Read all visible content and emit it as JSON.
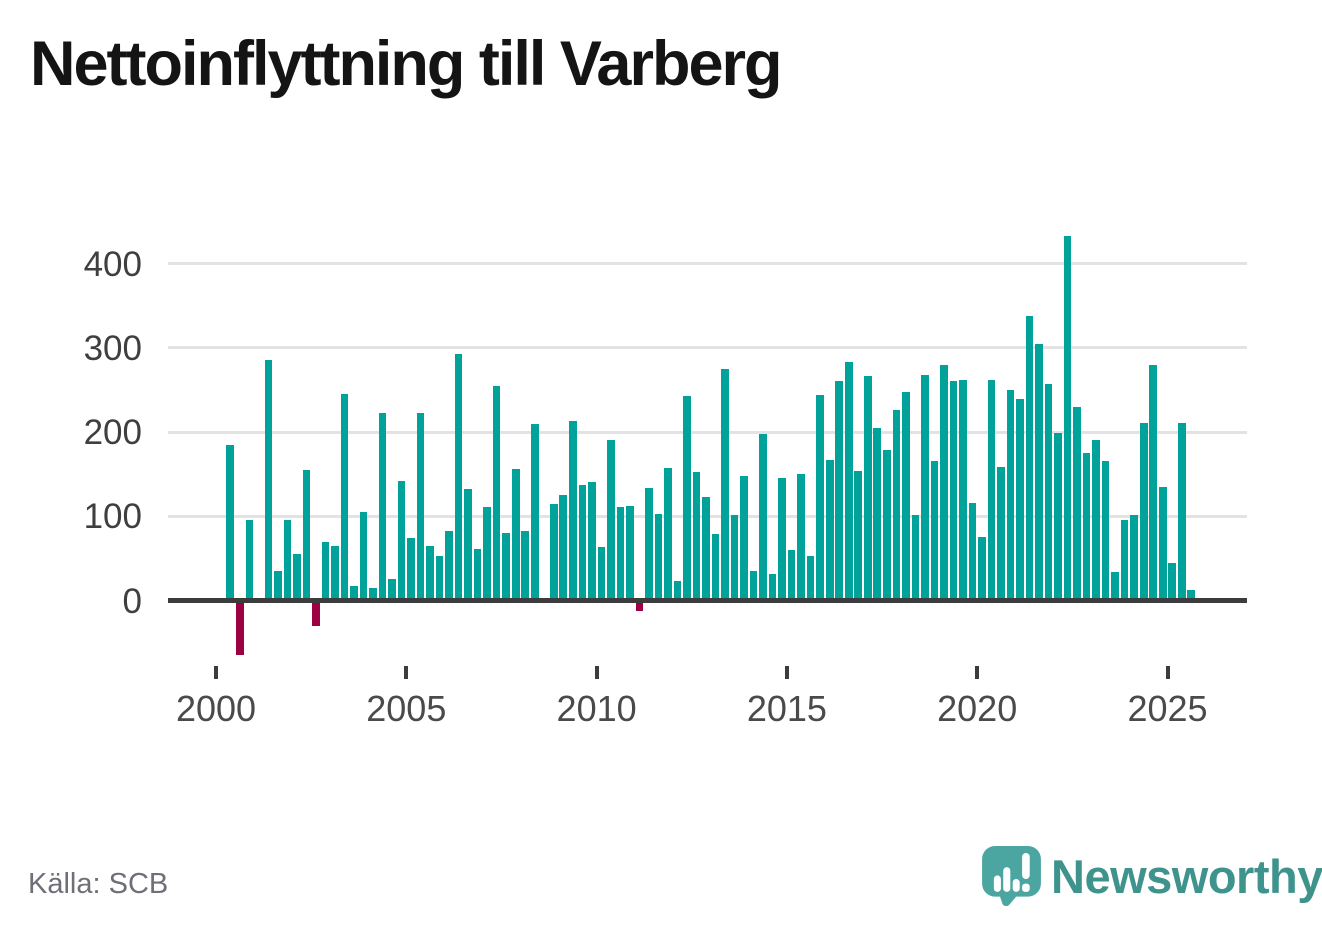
{
  "page": {
    "title": "Nettoinflyttning till Varberg",
    "source": "Källa: SCB",
    "brand": "Newsworthy"
  },
  "colors": {
    "bar_positive": "#00a29a",
    "bar_negative": "#9e0044",
    "gridline": "#e3e3e3",
    "axis_line": "#3c3c3c",
    "title_text": "#141414",
    "axis_text": "#4a4a4a",
    "source_text": "#6f6f77",
    "brand_teal": "#4ba5a0",
    "brand_text": "#3e938d"
  },
  "chart_data": {
    "type": "bar",
    "title": "Nettoinflyttning till Varberg",
    "xlabel": "",
    "ylabel": "",
    "x_tick_labels": [
      "2000",
      "2005",
      "2010",
      "2015",
      "2020",
      "2025"
    ],
    "y_tick_labels": [
      "0",
      "100",
      "200",
      "300",
      "400"
    ],
    "y_tick_values": [
      0,
      100,
      200,
      300,
      400
    ],
    "ylim": [
      -80,
      450
    ],
    "grid": true,
    "legend": false,
    "frequency": "quarterly",
    "series": [
      {
        "name": "Nettoinflyttning",
        "points": [
          [
            "2000Q2",
            185
          ],
          [
            "2000Q3",
            -65
          ],
          [
            "2000Q4",
            95
          ],
          [
            "2001Q1",
            0
          ],
          [
            "2001Q2",
            285
          ],
          [
            "2001Q3",
            35
          ],
          [
            "2001Q4",
            95
          ],
          [
            "2002Q1",
            55
          ],
          [
            "2002Q2",
            155
          ],
          [
            "2002Q3",
            -30
          ],
          [
            "2002Q4",
            70
          ],
          [
            "2003Q1",
            65
          ],
          [
            "2003Q2",
            245
          ],
          [
            "2003Q3",
            17
          ],
          [
            "2003Q4",
            105
          ],
          [
            "2004Q1",
            15
          ],
          [
            "2004Q2",
            222
          ],
          [
            "2004Q3",
            26
          ],
          [
            "2004Q4",
            142
          ],
          [
            "2005Q1",
            74
          ],
          [
            "2005Q2",
            222
          ],
          [
            "2005Q3",
            65
          ],
          [
            "2005Q4",
            53
          ],
          [
            "2006Q1",
            83
          ],
          [
            "2006Q2",
            292
          ],
          [
            "2006Q3",
            132
          ],
          [
            "2006Q4",
            61
          ],
          [
            "2007Q1",
            111
          ],
          [
            "2007Q2",
            255
          ],
          [
            "2007Q3",
            80
          ],
          [
            "2007Q4",
            156
          ],
          [
            "2008Q1",
            82
          ],
          [
            "2008Q2",
            210
          ],
          [
            "2008Q3",
            0
          ],
          [
            "2008Q4",
            115
          ],
          [
            "2009Q1",
            125
          ],
          [
            "2009Q2",
            213
          ],
          [
            "2009Q3",
            137
          ],
          [
            "2009Q4",
            141
          ],
          [
            "2010Q1",
            63
          ],
          [
            "2010Q2",
            190
          ],
          [
            "2010Q3",
            111
          ],
          [
            "2010Q4",
            112
          ],
          [
            "2011Q1",
            -13
          ],
          [
            "2011Q2",
            133
          ],
          [
            "2011Q3",
            103
          ],
          [
            "2011Q4",
            157
          ],
          [
            "2012Q1",
            23
          ],
          [
            "2012Q2",
            243
          ],
          [
            "2012Q3",
            153
          ],
          [
            "2012Q4",
            123
          ],
          [
            "2013Q1",
            79
          ],
          [
            "2013Q2",
            275
          ],
          [
            "2013Q3",
            102
          ],
          [
            "2013Q4",
            148
          ],
          [
            "2014Q1",
            35
          ],
          [
            "2014Q2",
            198
          ],
          [
            "2014Q3",
            32
          ],
          [
            "2014Q4",
            145
          ],
          [
            "2015Q1",
            60
          ],
          [
            "2015Q2",
            150
          ],
          [
            "2015Q3",
            53
          ],
          [
            "2015Q4",
            244
          ],
          [
            "2016Q1",
            167
          ],
          [
            "2016Q2",
            260
          ],
          [
            "2016Q3",
            283
          ],
          [
            "2016Q4",
            154
          ],
          [
            "2017Q1",
            267
          ],
          [
            "2017Q2",
            205
          ],
          [
            "2017Q3",
            179
          ],
          [
            "2017Q4",
            226
          ],
          [
            "2018Q1",
            247
          ],
          [
            "2018Q2",
            102
          ],
          [
            "2018Q3",
            268
          ],
          [
            "2018Q4",
            165
          ],
          [
            "2019Q1",
            280
          ],
          [
            "2019Q2",
            261
          ],
          [
            "2019Q3",
            262
          ],
          [
            "2019Q4",
            116
          ],
          [
            "2020Q1",
            75
          ],
          [
            "2020Q2",
            262
          ],
          [
            "2020Q3",
            158
          ],
          [
            "2020Q4",
            250
          ],
          [
            "2021Q1",
            239
          ],
          [
            "2021Q2",
            338
          ],
          [
            "2021Q3",
            305
          ],
          [
            "2021Q4",
            257
          ],
          [
            "2022Q1",
            199
          ],
          [
            "2022Q2",
            433
          ],
          [
            "2022Q3",
            230
          ],
          [
            "2022Q4",
            175
          ],
          [
            "2023Q1",
            190
          ],
          [
            "2023Q2",
            165
          ],
          [
            "2023Q3",
            34
          ],
          [
            "2023Q4",
            95
          ],
          [
            "2024Q1",
            102
          ],
          [
            "2024Q2",
            211
          ],
          [
            "2024Q3",
            280
          ],
          [
            "2024Q4",
            135
          ],
          [
            "2025Q1",
            45
          ],
          [
            "2025Q2",
            211
          ],
          [
            "2025Q3",
            13
          ]
        ]
      }
    ]
  }
}
